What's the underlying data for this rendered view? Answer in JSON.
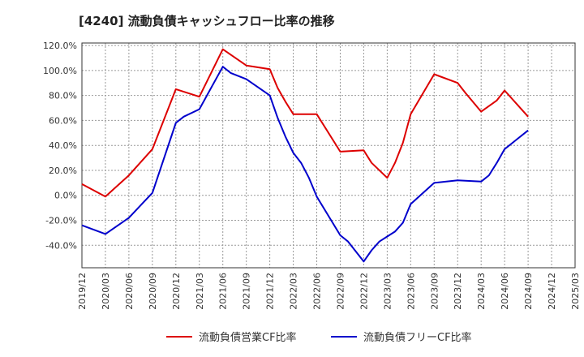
{
  "chart_data": {
    "type": "line",
    "title": "[4240]  流動負債キャッシュフロー比率の推移",
    "xlabel": "",
    "ylabel": "",
    "ylim": [
      -58,
      122
    ],
    "yticks": [
      -40,
      -20,
      0,
      20,
      40,
      60,
      80,
      100,
      120
    ],
    "ytick_labels": [
      "-40.0%",
      "-20.0%",
      "0.0%",
      "20.0%",
      "40.0%",
      "60.0%",
      "80.0%",
      "100.0%",
      "120.0%"
    ],
    "xticks": [
      "2019/12",
      "2020/03",
      "2020/06",
      "2020/09",
      "2020/12",
      "2021/03",
      "2021/06",
      "2021/09",
      "2021/12",
      "2022/03",
      "2022/06",
      "2022/09",
      "2022/12",
      "2023/03",
      "2023/06",
      "2023/09",
      "2023/12",
      "2024/03",
      "2024/06",
      "2024/09",
      "2024/12",
      "2025/03"
    ],
    "grid": true,
    "legend_position": "bottom",
    "series": [
      {
        "name": "流動負債営業CF比率",
        "color": "#dd0000",
        "points": [
          [
            "2019/12",
            9
          ],
          [
            "2020/03",
            -1
          ],
          [
            "2020/06",
            16
          ],
          [
            "2020/09",
            37
          ],
          [
            "2020/12",
            85
          ],
          [
            "2021/03",
            79
          ],
          [
            "2021/06",
            117
          ],
          [
            "2021/09",
            104
          ],
          [
            "2021/12",
            101
          ],
          [
            "2022/01",
            86
          ],
          [
            "2022/02",
            75
          ],
          [
            "2022/03",
            65
          ],
          [
            "2022/06",
            65
          ],
          [
            "2022/09",
            35
          ],
          [
            "2022/12",
            36
          ],
          [
            "2023/01",
            26
          ],
          [
            "2023/03",
            14
          ],
          [
            "2023/04",
            26
          ],
          [
            "2023/05",
            42
          ],
          [
            "2023/06",
            65
          ],
          [
            "2023/09",
            97
          ],
          [
            "2023/12",
            90
          ],
          [
            "2024/01",
            82
          ],
          [
            "2024/03",
            67
          ],
          [
            "2024/05",
            76
          ],
          [
            "2024/06",
            84
          ],
          [
            "2024/09",
            63
          ]
        ]
      },
      {
        "name": "流動負債フリーCF比率",
        "color": "#0000cc",
        "points": [
          [
            "2019/12",
            -24
          ],
          [
            "2020/03",
            -31
          ],
          [
            "2020/06",
            -18
          ],
          [
            "2020/09",
            2
          ],
          [
            "2020/12",
            58
          ],
          [
            "2021/01",
            63
          ],
          [
            "2021/03",
            69
          ],
          [
            "2021/06",
            103
          ],
          [
            "2021/07",
            98
          ],
          [
            "2021/09",
            93
          ],
          [
            "2021/12",
            80
          ],
          [
            "2022/01",
            62
          ],
          [
            "2022/02",
            47
          ],
          [
            "2022/03",
            34
          ],
          [
            "2022/04",
            26
          ],
          [
            "2022/05",
            14
          ],
          [
            "2022/06",
            -1
          ],
          [
            "2022/09",
            -32
          ],
          [
            "2022/10",
            -37
          ],
          [
            "2022/12",
            -53
          ],
          [
            "2023/01",
            -44
          ],
          [
            "2023/02",
            -37
          ],
          [
            "2023/03",
            -33
          ],
          [
            "2023/04",
            -29
          ],
          [
            "2023/05",
            -22
          ],
          [
            "2023/06",
            -7
          ],
          [
            "2023/09",
            10
          ],
          [
            "2023/12",
            12
          ],
          [
            "2024/03",
            11
          ],
          [
            "2024/04",
            16
          ],
          [
            "2024/05",
            26
          ],
          [
            "2024/06",
            37
          ],
          [
            "2024/09",
            52
          ]
        ]
      }
    ]
  }
}
